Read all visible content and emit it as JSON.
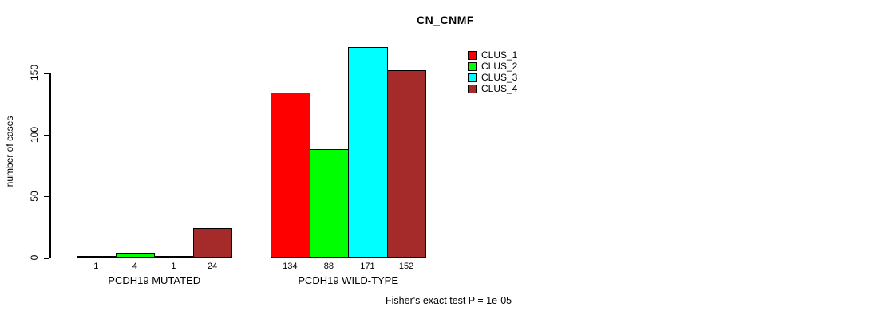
{
  "title": "CN_CNMF",
  "y_axis": {
    "label": "number of cases",
    "tick_labels": [
      "0",
      "50",
      "100",
      "150"
    ]
  },
  "footer": {
    "text": "Fisher's exact test P = 1e-05"
  },
  "legend": {
    "position": "top-right",
    "items": [
      {
        "label": "CLUS_1",
        "color": "#FF0000"
      },
      {
        "label": "CLUS_2",
        "color": "#00FF00"
      },
      {
        "label": "CLUS_3",
        "color": "#00FFFF"
      },
      {
        "label": "CLUS_4",
        "color": "#A52A2A"
      }
    ]
  },
  "chart_data": {
    "type": "bar",
    "title": "CN_CNMF",
    "ylabel": "number of cases",
    "xlabel": "",
    "categories": [
      "PCDH19 MUTATED",
      "PCDH19 WILD-TYPE"
    ],
    "series": [
      {
        "name": "CLUS_1",
        "color": "#FF0000",
        "values": [
          1,
          134
        ]
      },
      {
        "name": "CLUS_2",
        "color": "#00FF00",
        "values": [
          4,
          88
        ]
      },
      {
        "name": "CLUS_3",
        "color": "#00FFFF",
        "values": [
          1,
          171
        ]
      },
      {
        "name": "CLUS_4",
        "color": "#A52A2A",
        "values": [
          24,
          152
        ]
      }
    ],
    "bar_value_labels": [
      [
        1,
        4,
        1,
        24
      ],
      [
        134,
        88,
        171,
        152
      ]
    ],
    "yticks": [
      0,
      50,
      100,
      150
    ],
    "ylim": [
      0,
      175
    ],
    "grid": false,
    "legend_position": "top-right",
    "annotation": "Fisher's exact test P = 1e-05"
  }
}
